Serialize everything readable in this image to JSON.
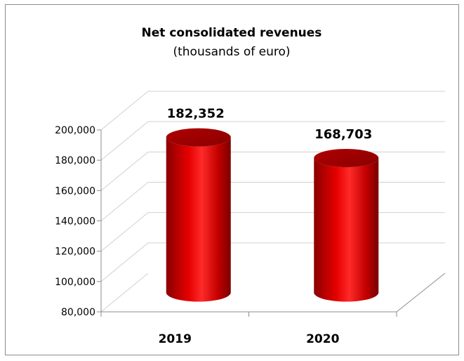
{
  "chart_data": {
    "type": "bar",
    "style": "3d-cylinder",
    "title": "Net consolidated revenues",
    "subtitle": "(thousands of euro)",
    "categories": [
      "2019",
      "2020"
    ],
    "values": [
      182352,
      168703
    ],
    "data_labels": [
      "182,352",
      "168,703"
    ],
    "ylim": [
      80000,
      200000
    ],
    "ytick_labels": [
      "80,000",
      "100,000",
      "120,000",
      "140,000",
      "160,000",
      "180,000",
      "200,000"
    ],
    "grid": true,
    "legend": "none",
    "bar_color": "#cc0000"
  }
}
